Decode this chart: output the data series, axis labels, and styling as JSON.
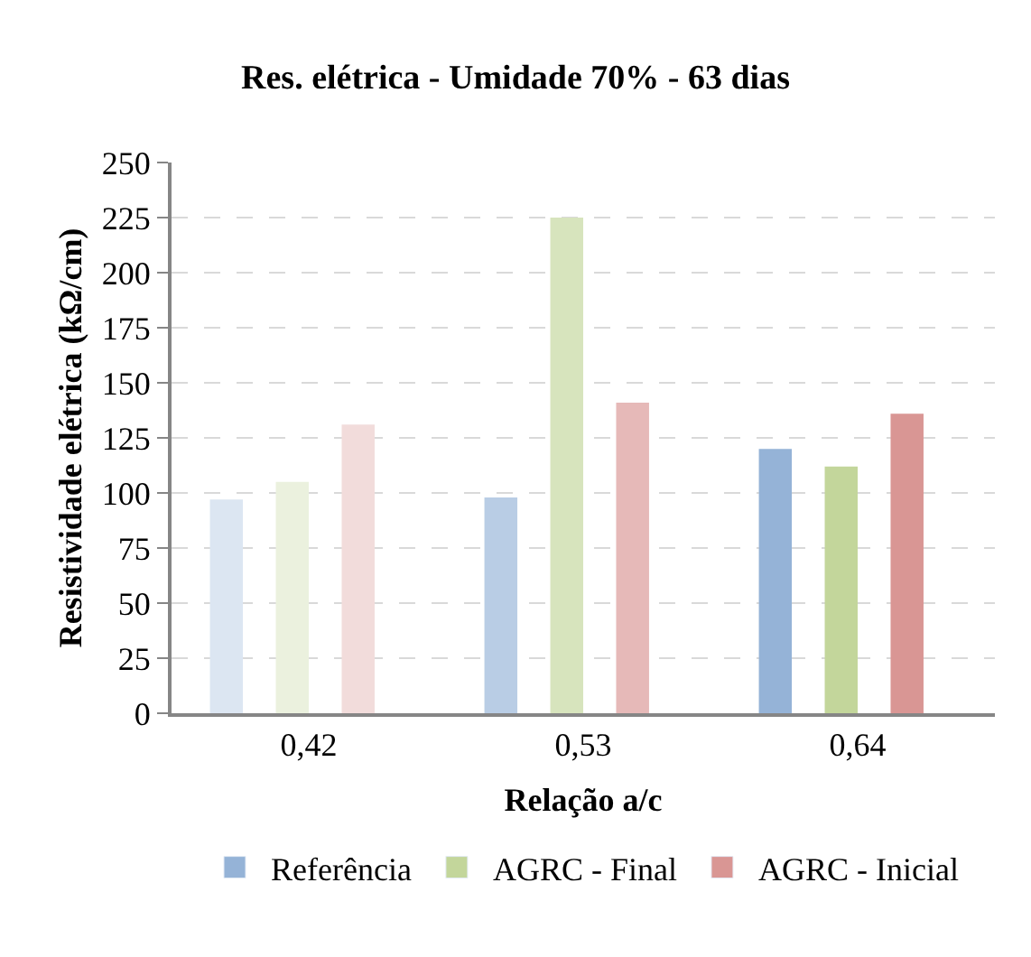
{
  "chart_data": {
    "type": "bar",
    "title": "Res. elétrica - Umidade 70% - 63 dias",
    "xlabel": "Relação a/c",
    "ylabel": "Resistividade elétrica (kΩ/cm)",
    "categories": [
      "0,42",
      "0,53",
      "0,64"
    ],
    "series": [
      {
        "name": "Referência",
        "color": "#95b3d7",
        "colors": [
          "#dce6f2",
          "#b9cde5",
          "#95b3d7"
        ],
        "values": [
          97,
          98,
          120
        ]
      },
      {
        "name": "AGRC - Final",
        "color": "#c3d69b",
        "colors": [
          "#ebf1de",
          "#d7e4bd",
          "#c3d69b"
        ],
        "values": [
          105,
          225,
          112
        ]
      },
      {
        "name": "AGRC - Inicial",
        "color": "#d99694",
        "colors": [
          "#f2dcdb",
          "#e6b9b8",
          "#d99694"
        ],
        "values": [
          131,
          141,
          136
        ]
      }
    ],
    "ylim": [
      0,
      250
    ],
    "yticks": [
      0,
      25,
      50,
      75,
      100,
      125,
      150,
      175,
      200,
      225,
      250
    ],
    "grid": "y",
    "legend": "bottom"
  }
}
